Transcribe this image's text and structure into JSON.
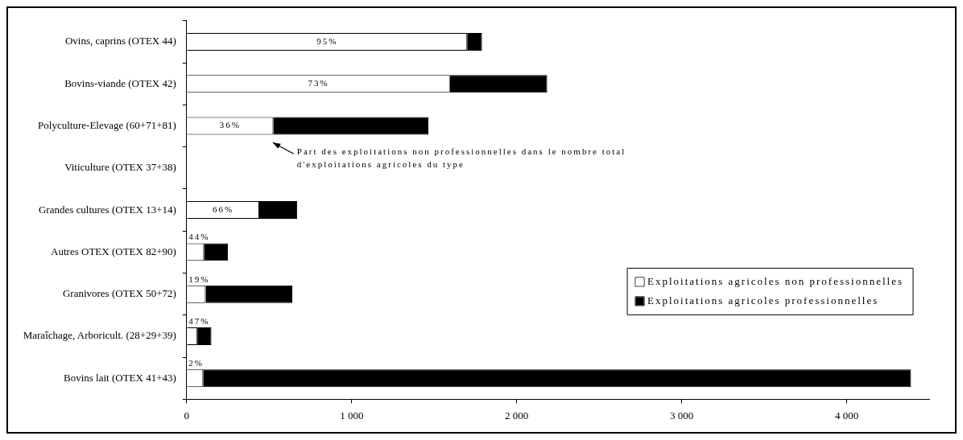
{
  "chart_data": {
    "type": "bar",
    "orientation": "horizontal",
    "stacked": true,
    "categories": [
      "Ovins, caprins (OTEX 44)",
      "Bovins-viande (OTEX 42)",
      "Polyculture-Elevage (60+71+81)",
      "Viticulture (OTEX 37+38)",
      "Grandes cultures (OTEX 13+14)",
      "Autres OTEX (OTEX 82+90)",
      "Granivores (OTEX 50+72)",
      "Maraîchage, Arboricult. (28+29+39)",
      "Bovins lait (OTEX 41+43)"
    ],
    "series": [
      {
        "name": "Exploitations agricoles non professionnelles",
        "color": "#ffffff",
        "values": [
          1700,
          1595,
          525,
          null,
          440,
          105,
          115,
          65,
          100
        ]
      },
      {
        "name": "Exploitations agricoles professionnelles",
        "color": "#000000",
        "values": [
          90,
          590,
          940,
          null,
          230,
          145,
          525,
          85,
          4290
        ]
      }
    ],
    "xlim": [
      0,
      4500
    ],
    "xticks": [
      0,
      {
        "value": 1000,
        "label": "1 000"
      },
      {
        "value": 2000,
        "label": "2 000"
      },
      {
        "value": 3000,
        "label": "3 000"
      },
      {
        "value": 4000,
        "label": "4 000"
      }
    ],
    "grid": false,
    "legend": "bottom right",
    "annotations": [
      "Part des exploitations non professionnelles dans le nombre total d'exploitations agricoles du type",
      "95%",
      "73%",
      "36%",
      "66%",
      "44%",
      "19%",
      "47%",
      "2%"
    ]
  }
}
